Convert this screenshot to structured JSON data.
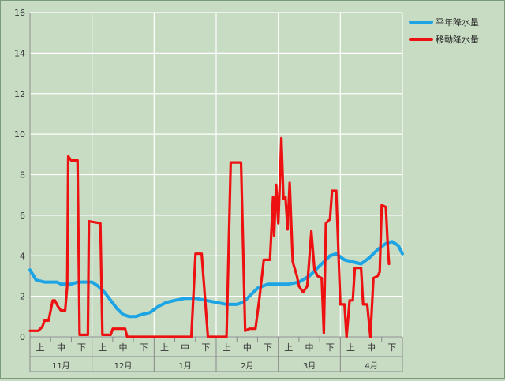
{
  "chart_data": {
    "type": "line",
    "title": "",
    "xlabel": "",
    "ylabel": "",
    "ylim": [
      0,
      16
    ],
    "yticks": [
      0,
      2,
      4,
      6,
      8,
      10,
      12,
      14,
      16
    ],
    "grid": true,
    "legend_position": "top-right",
    "x_range": [
      0,
      18
    ],
    "decades": [
      "上",
      "中",
      "下",
      "上",
      "中",
      "下",
      "上",
      "中",
      "下",
      "上",
      "中",
      "下",
      "上",
      "中",
      "下",
      "上",
      "中",
      "下"
    ],
    "months": [
      "11月",
      "12月",
      "1月",
      "2月",
      "3月",
      "4月"
    ],
    "series": [
      {
        "name": "平年降水量",
        "color": "#1ca4e4",
        "points": [
          [
            0.0,
            3.3
          ],
          [
            0.3,
            2.8
          ],
          [
            0.7,
            2.7
          ],
          [
            1.0,
            2.7
          ],
          [
            1.3,
            2.7
          ],
          [
            1.5,
            2.6
          ],
          [
            1.8,
            2.6
          ],
          [
            2.0,
            2.6
          ],
          [
            2.3,
            2.7
          ],
          [
            2.6,
            2.7
          ],
          [
            3.0,
            2.7
          ],
          [
            3.3,
            2.5
          ],
          [
            3.6,
            2.2
          ],
          [
            3.9,
            1.8
          ],
          [
            4.2,
            1.4
          ],
          [
            4.5,
            1.1
          ],
          [
            4.8,
            1.0
          ],
          [
            5.1,
            1.0
          ],
          [
            5.4,
            1.1
          ],
          [
            5.8,
            1.2
          ],
          [
            6.2,
            1.5
          ],
          [
            6.6,
            1.7
          ],
          [
            7.0,
            1.8
          ],
          [
            7.5,
            1.9
          ],
          [
            8.0,
            1.9
          ],
          [
            8.5,
            1.8
          ],
          [
            9.0,
            1.7
          ],
          [
            9.5,
            1.6
          ],
          [
            10.0,
            1.6
          ],
          [
            10.3,
            1.7
          ],
          [
            10.6,
            2.0
          ],
          [
            11.0,
            2.4
          ],
          [
            11.5,
            2.6
          ],
          [
            12.0,
            2.6
          ],
          [
            12.5,
            2.6
          ],
          [
            13.0,
            2.7
          ],
          [
            13.5,
            3.0
          ],
          [
            14.0,
            3.5
          ],
          [
            14.5,
            4.0
          ],
          [
            14.8,
            4.1
          ],
          [
            15.2,
            3.8
          ],
          [
            15.6,
            3.7
          ],
          [
            16.0,
            3.6
          ],
          [
            16.4,
            3.9
          ],
          [
            16.8,
            4.3
          ],
          [
            17.2,
            4.6
          ],
          [
            17.5,
            4.7
          ],
          [
            17.8,
            4.5
          ],
          [
            18.0,
            4.1
          ]
        ]
      },
      {
        "name": "移動降水量",
        "color": "#ee1111",
        "points": [
          [
            0.0,
            0.3
          ],
          [
            0.4,
            0.3
          ],
          [
            0.6,
            0.5
          ],
          [
            0.7,
            0.8
          ],
          [
            0.9,
            0.8
          ],
          [
            1.0,
            1.3
          ],
          [
            1.1,
            1.8
          ],
          [
            1.2,
            1.8
          ],
          [
            1.35,
            1.5
          ],
          [
            1.5,
            1.3
          ],
          [
            1.7,
            1.3
          ],
          [
            1.8,
            2.5
          ],
          [
            1.85,
            8.9
          ],
          [
            2.0,
            8.7
          ],
          [
            2.3,
            8.7
          ],
          [
            2.4,
            0.1
          ],
          [
            2.8,
            0.1
          ],
          [
            2.85,
            5.7
          ],
          [
            3.4,
            5.6
          ],
          [
            3.5,
            0.1
          ],
          [
            3.9,
            0.1
          ],
          [
            4.0,
            0.4
          ],
          [
            4.6,
            0.4
          ],
          [
            4.7,
            0.0
          ],
          [
            7.8,
            0.0
          ],
          [
            8.0,
            4.1
          ],
          [
            8.3,
            4.1
          ],
          [
            8.6,
            0.0
          ],
          [
            9.5,
            0.0
          ],
          [
            9.7,
            8.6
          ],
          [
            10.2,
            8.6
          ],
          [
            10.4,
            0.3
          ],
          [
            10.6,
            0.4
          ],
          [
            10.9,
            0.4
          ],
          [
            11.1,
            2.0
          ],
          [
            11.3,
            3.8
          ],
          [
            11.6,
            3.8
          ],
          [
            11.75,
            6.9
          ],
          [
            11.8,
            5.0
          ],
          [
            11.9,
            7.5
          ],
          [
            12.0,
            5.6
          ],
          [
            12.1,
            8.3
          ],
          [
            12.15,
            9.8
          ],
          [
            12.25,
            6.8
          ],
          [
            12.35,
            6.9
          ],
          [
            12.45,
            5.3
          ],
          [
            12.55,
            7.6
          ],
          [
            12.7,
            3.7
          ],
          [
            12.9,
            3.0
          ],
          [
            13.0,
            2.5
          ],
          [
            13.2,
            2.2
          ],
          [
            13.4,
            2.5
          ],
          [
            13.6,
            5.2
          ],
          [
            13.75,
            3.3
          ],
          [
            13.9,
            3.0
          ],
          [
            14.1,
            2.9
          ],
          [
            14.2,
            0.2
          ],
          [
            14.3,
            5.6
          ],
          [
            14.5,
            5.8
          ],
          [
            14.6,
            7.2
          ],
          [
            14.8,
            7.2
          ],
          [
            15.0,
            1.6
          ],
          [
            15.2,
            1.6
          ],
          [
            15.3,
            0.0
          ],
          [
            15.45,
            1.8
          ],
          [
            15.6,
            1.8
          ],
          [
            15.7,
            3.4
          ],
          [
            16.0,
            3.4
          ],
          [
            16.1,
            1.6
          ],
          [
            16.3,
            1.6
          ],
          [
            16.45,
            0.0
          ],
          [
            16.6,
            2.9
          ],
          [
            16.8,
            3.0
          ],
          [
            16.9,
            3.2
          ],
          [
            17.0,
            6.5
          ],
          [
            17.2,
            6.4
          ],
          [
            17.3,
            4.4
          ],
          [
            17.35,
            3.6
          ]
        ]
      }
    ]
  }
}
